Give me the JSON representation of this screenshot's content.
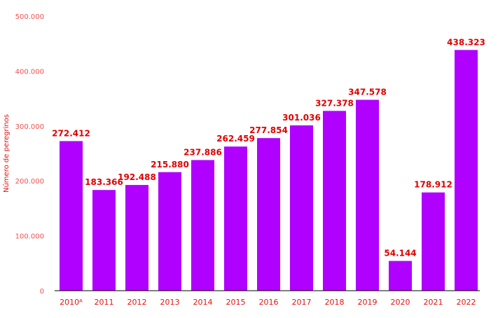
{
  "chart_data": {
    "type": "bar",
    "title": "",
    "xlabel": "",
    "ylabel": "Número de peregrinos",
    "categories": [
      "2010ᴬ",
      "2011",
      "2012",
      "2013",
      "2014",
      "2015",
      "2016",
      "2017",
      "2018",
      "2019",
      "2020",
      "2021",
      "2022"
    ],
    "values": [
      272412,
      183366,
      192488,
      215880,
      237886,
      262459,
      277854,
      301036,
      327378,
      347578,
      54144,
      178912,
      438323
    ],
    "data_labels": [
      "272.412",
      "183.366",
      "192.488",
      "215.880",
      "237.886",
      "262.459",
      "277.854",
      "301.036",
      "327.378",
      "347.578",
      "54.144",
      "178.912",
      "438.323"
    ],
    "ylim": [
      0,
      500000
    ],
    "yticks": [
      0,
      100000,
      200000,
      300000,
      400000,
      500000
    ],
    "ytick_labels": [
      "0",
      "100.000",
      "200.000",
      "300.000",
      "400.000",
      "500.000"
    ],
    "grid": false,
    "legend": "none",
    "colors": {
      "bar": "#b000ff",
      "labels": "#e00000",
      "ticks": "#f05050",
      "axis": "#000000"
    }
  }
}
